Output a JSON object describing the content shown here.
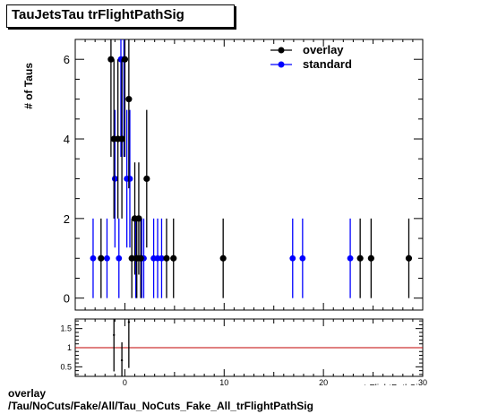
{
  "title": "TauJetsTau trFlightPathSig",
  "footer": {
    "line1": "overlay",
    "line2": "/Tau/NoCuts/Fake/All/Tau_NoCuts_Fake_All_trFlightPathSig"
  },
  "colors": {
    "overlay": "#000000",
    "standard": "#0000ff",
    "ratio_line": "#c00000"
  },
  "chart_data": [
    {
      "type": "scatter",
      "ylabel": "# of Taus",
      "xlabel": "trFlightPathSig",
      "xlim": [
        -5,
        30
      ],
      "ylim": [
        -0.3,
        6.5
      ],
      "y_ticks": [
        0,
        2,
        4,
        6
      ],
      "legend": {
        "position": "top-right",
        "entries": [
          "overlay",
          "standard"
        ]
      },
      "series": [
        {
          "name": "overlay",
          "points": [
            {
              "x": -2.4,
              "y": 1,
              "err": 1
            },
            {
              "x": -1.4,
              "y": 6,
              "err": 2.45
            },
            {
              "x": -1.1,
              "y": 4,
              "err": 2
            },
            {
              "x": -0.7,
              "y": 4,
              "err": 2
            },
            {
              "x": -0.3,
              "y": 4,
              "err": 2
            },
            {
              "x": 0.0,
              "y": 6,
              "err": 2.45
            },
            {
              "x": 0.4,
              "y": 5,
              "err": 2.24
            },
            {
              "x": 0.7,
              "y": 1,
              "err": 1
            },
            {
              "x": 1.0,
              "y": 2,
              "err": 1.41
            },
            {
              "x": 1.2,
              "y": 1,
              "err": 1
            },
            {
              "x": 1.4,
              "y": 2,
              "err": 1.41
            },
            {
              "x": 1.6,
              "y": 1,
              "err": 1
            },
            {
              "x": 2.2,
              "y": 3,
              "err": 1.73
            },
            {
              "x": 4.2,
              "y": 1,
              "err": 1
            },
            {
              "x": 4.9,
              "y": 1,
              "err": 1
            },
            {
              "x": 9.9,
              "y": 1,
              "err": 1
            },
            {
              "x": 23.7,
              "y": 1,
              "err": 1
            },
            {
              "x": 24.8,
              "y": 1,
              "err": 1
            },
            {
              "x": 28.6,
              "y": 1,
              "err": 1
            }
          ]
        },
        {
          "name": "standard",
          "points": [
            {
              "x": -3.2,
              "y": 1,
              "err": 1
            },
            {
              "x": -1.8,
              "y": 1,
              "err": 1
            },
            {
              "x": -1.0,
              "y": 3,
              "err": 1.73
            },
            {
              "x": -0.6,
              "y": 1,
              "err": 1
            },
            {
              "x": -0.4,
              "y": 6,
              "err": 2.45
            },
            {
              "x": -0.1,
              "y": 6,
              "err": 2.45
            },
            {
              "x": 0.2,
              "y": 3,
              "err": 1.73
            },
            {
              "x": 0.5,
              "y": 3,
              "err": 1.73
            },
            {
              "x": 1.1,
              "y": 1,
              "err": 1
            },
            {
              "x": 1.7,
              "y": 1,
              "err": 1
            },
            {
              "x": 1.9,
              "y": 1,
              "err": 1
            },
            {
              "x": 2.9,
              "y": 1,
              "err": 1
            },
            {
              "x": 3.3,
              "y": 1,
              "err": 1
            },
            {
              "x": 3.7,
              "y": 1,
              "err": 1
            },
            {
              "x": 16.9,
              "y": 1,
              "err": 1
            },
            {
              "x": 17.9,
              "y": 1,
              "err": 1
            },
            {
              "x": 22.7,
              "y": 1,
              "err": 1
            }
          ]
        }
      ]
    },
    {
      "type": "scatter",
      "xlim": [
        -5,
        30
      ],
      "ylim": [
        0.25,
        1.75
      ],
      "y_ticks": [
        0.5,
        1,
        1.5
      ],
      "x_ticks": [
        0,
        10,
        20,
        30
      ],
      "reference_line": 1,
      "series": [
        {
          "name": "",
          "points": [
            {
              "x": -1.1,
              "y": 1.33,
              "err": 0.95
            },
            {
              "x": -0.3,
              "y": 0.67,
              "err": 0.47
            },
            {
              "x": 0.4,
              "y": 1.67,
              "err": 1.2
            }
          ]
        }
      ]
    }
  ]
}
